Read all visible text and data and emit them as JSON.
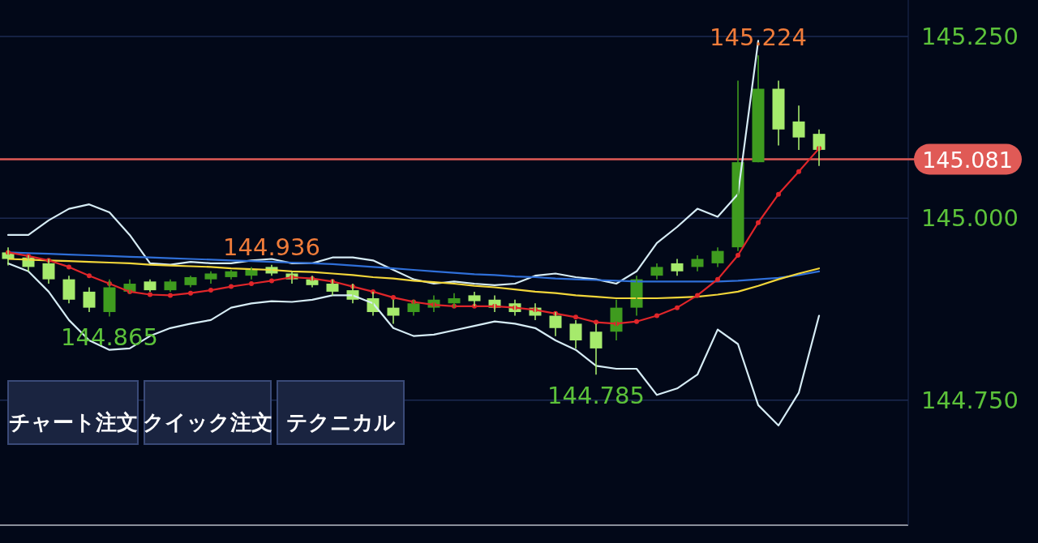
{
  "chart_data": {
    "type": "candlestick",
    "categories": [
      null,
      null,
      null,
      null,
      null,
      null,
      null,
      null,
      null,
      null,
      null,
      null,
      null,
      null,
      null,
      null,
      null,
      null,
      null,
      null,
      null,
      null,
      null,
      null,
      null,
      null,
      null,
      null,
      null,
      null,
      null,
      null,
      null,
      null,
      null,
      null,
      null,
      null,
      null,
      null,
      null
    ],
    "ohlc": [
      [
        144.953,
        144.96,
        144.935,
        144.944
      ],
      [
        144.946,
        144.949,
        144.927,
        144.933
      ],
      [
        144.938,
        144.944,
        144.91,
        144.916
      ],
      [
        144.916,
        144.921,
        144.883,
        144.888
      ],
      [
        144.899,
        144.905,
        144.871,
        144.877
      ],
      [
        144.871,
        144.916,
        144.865,
        144.905
      ],
      [
        144.899,
        144.916,
        144.897,
        144.91
      ],
      [
        144.913,
        144.916,
        144.899,
        144.901
      ],
      [
        144.901,
        144.916,
        144.899,
        144.913
      ],
      [
        144.908,
        144.921,
        144.905,
        144.919
      ],
      [
        144.916,
        144.927,
        144.91,
        144.924
      ],
      [
        144.919,
        144.929,
        144.916,
        144.927
      ],
      [
        144.921,
        144.933,
        144.916,
        144.929
      ],
      [
        144.933,
        144.936,
        144.921,
        144.924
      ],
      [
        144.924,
        144.927,
        144.91,
        144.916
      ],
      [
        144.916,
        144.921,
        144.905,
        144.908
      ],
      [
        144.91,
        144.916,
        144.894,
        144.899
      ],
      [
        144.901,
        144.91,
        144.883,
        144.888
      ],
      [
        144.89,
        144.899,
        144.866,
        144.871
      ],
      [
        144.877,
        144.888,
        144.855,
        144.866
      ],
      [
        144.871,
        144.888,
        144.866,
        144.883
      ],
      [
        144.877,
        144.894,
        144.871,
        144.888
      ],
      [
        144.883,
        144.897,
        144.877,
        144.89
      ],
      [
        144.894,
        144.899,
        144.879,
        144.886
      ],
      [
        144.888,
        144.894,
        144.871,
        144.877
      ],
      [
        144.883,
        144.888,
        144.866,
        144.871
      ],
      [
        144.877,
        144.883,
        144.86,
        144.866
      ],
      [
        144.866,
        144.871,
        144.838,
        144.849
      ],
      [
        144.855,
        144.86,
        144.821,
        144.832
      ],
      [
        144.844,
        144.855,
        144.785,
        144.821
      ],
      [
        144.844,
        144.888,
        144.832,
        144.877
      ],
      [
        144.877,
        144.921,
        144.866,
        144.916
      ],
      [
        144.921,
        144.938,
        144.916,
        144.933
      ],
      [
        144.938,
        144.944,
        144.921,
        144.927
      ],
      [
        144.933,
        144.949,
        144.927,
        144.944
      ],
      [
        144.938,
        144.96,
        144.933,
        144.955
      ],
      [
        144.96,
        145.189,
        144.955,
        145.077
      ],
      [
        145.077,
        145.224,
        145.077,
        145.178
      ],
      [
        145.178,
        145.189,
        145.1,
        145.122
      ],
      [
        145.133,
        145.155,
        145.094,
        145.111
      ],
      [
        145.116,
        145.122,
        145.072,
        145.094
      ]
    ],
    "colors": [
      "#a6ea6c",
      "#a6ea6c",
      "#a6ea6c",
      "#a6ea6c",
      "#a6ea6c",
      "#3f9b1f",
      "#3f9b1f",
      "#a6ea6c",
      "#3f9b1f",
      "#3f9b1f",
      "#3f9b1f",
      "#3f9b1f",
      "#3f9b1f",
      "#a6ea6c",
      "#a6ea6c",
      "#a6ea6c",
      "#a6ea6c",
      "#a6ea6c",
      "#a6ea6c",
      "#a6ea6c",
      "#3f9b1f",
      "#3f9b1f",
      "#3f9b1f",
      "#a6ea6c",
      "#a6ea6c",
      "#a6ea6c",
      "#a6ea6c",
      "#a6ea6c",
      "#a6ea6c",
      "#a6ea6c",
      "#3f9b1f",
      "#3f9b1f",
      "#3f9b1f",
      "#a6ea6c",
      "#3f9b1f",
      "#3f9b1f",
      "#3f9b1f",
      "#3f9b1f",
      "#a6ea6c",
      "#a6ea6c",
      "#a6ea6c"
    ],
    "series": [
      {
        "type": "line",
        "color": "#d6ecf5",
        "values": [
          144.977,
          144.977,
          144.997,
          145.013,
          145.019,
          145.008,
          144.977,
          144.938,
          144.936,
          144.94,
          144.938,
          144.938,
          144.942,
          144.944,
          144.938,
          144.938,
          144.946,
          144.946,
          144.942,
          144.929,
          144.916,
          144.91,
          144.913,
          144.91,
          144.908,
          144.91,
          144.921,
          144.924,
          144.919,
          144.916,
          144.91,
          144.927,
          144.966,
          144.988,
          145.013,
          145.002,
          145.033,
          145.244,
          null,
          null,
          null
        ]
      },
      {
        "type": "line",
        "color": "#d6ecf5",
        "values": [
          144.938,
          144.927,
          144.899,
          144.86,
          144.832,
          144.819,
          144.821,
          144.838,
          144.849,
          144.855,
          144.86,
          144.877,
          144.883,
          144.886,
          144.885,
          144.888,
          144.894,
          144.894,
          144.883,
          144.849,
          144.838,
          144.84,
          144.846,
          144.852,
          144.858,
          144.855,
          144.849,
          144.832,
          144.819,
          144.797,
          144.793,
          144.793,
          144.757,
          144.766,
          144.785,
          144.847,
          144.827,
          144.743,
          144.715,
          144.76,
          144.866
        ]
      },
      {
        "type": "line",
        "color": "#2f6fd8",
        "values": [
          144.953,
          144.952,
          144.951,
          144.95,
          144.949,
          144.948,
          144.947,
          144.946,
          144.945,
          144.944,
          144.943,
          144.942,
          144.941,
          144.94,
          144.939,
          144.938,
          144.937,
          144.935,
          144.933,
          144.931,
          144.929,
          144.927,
          144.925,
          144.923,
          144.922,
          144.92,
          144.919,
          144.917,
          144.916,
          144.915,
          144.914,
          144.913,
          144.913,
          144.913,
          144.913,
          144.913,
          144.914,
          144.916,
          144.918,
          144.922,
          144.927
        ]
      },
      {
        "type": "line",
        "color": "#f2d63a",
        "values": [
          144.944,
          144.943,
          144.942,
          144.941,
          144.94,
          144.939,
          144.938,
          144.936,
          144.935,
          144.934,
          144.933,
          144.931,
          144.93,
          144.929,
          144.927,
          144.926,
          144.924,
          144.922,
          144.919,
          144.917,
          144.914,
          144.912,
          144.91,
          144.907,
          144.905,
          144.902,
          144.899,
          144.897,
          144.894,
          144.892,
          144.89,
          144.89,
          144.89,
          144.891,
          144.892,
          144.895,
          144.899,
          144.907,
          144.916,
          144.924,
          144.931
        ]
      },
      {
        "type": "line",
        "color": "#e0262a",
        "marker": "circle",
        "values": [
          144.953,
          144.948,
          144.942,
          144.933,
          144.921,
          144.91,
          144.899,
          144.895,
          144.894,
          144.897,
          144.901,
          144.906,
          144.91,
          144.914,
          144.919,
          144.917,
          144.913,
          144.906,
          144.899,
          144.891,
          144.885,
          144.881,
          144.879,
          144.879,
          144.879,
          144.877,
          144.874,
          144.869,
          144.864,
          144.857,
          144.855,
          144.858,
          144.866,
          144.877,
          144.894,
          144.916,
          144.949,
          144.994,
          145.033,
          145.064,
          145.096
        ]
      }
    ],
    "ylim": [
      144.578,
      145.3
    ],
    "yticks": [
      {
        "value": 144.75,
        "label": "144.750"
      },
      {
        "value": 145,
        "label": "145.000"
      },
      {
        "value": 145.25,
        "label": "145.250"
      }
    ],
    "grid": "y",
    "ref_lines": [
      {
        "axis": "y",
        "value": 145.081,
        "label": "145.081",
        "color": "#e05a56"
      }
    ],
    "annotations": [
      {
        "text": "145.224",
        "y": 145.224
      },
      {
        "text": "144.936",
        "y": 144.936
      },
      {
        "text": "144.865",
        "y": 144.865
      },
      {
        "text": "144.785",
        "y": 144.785
      },
      "チャート注文",
      "クイック注文",
      "テクニカル"
    ]
  }
}
